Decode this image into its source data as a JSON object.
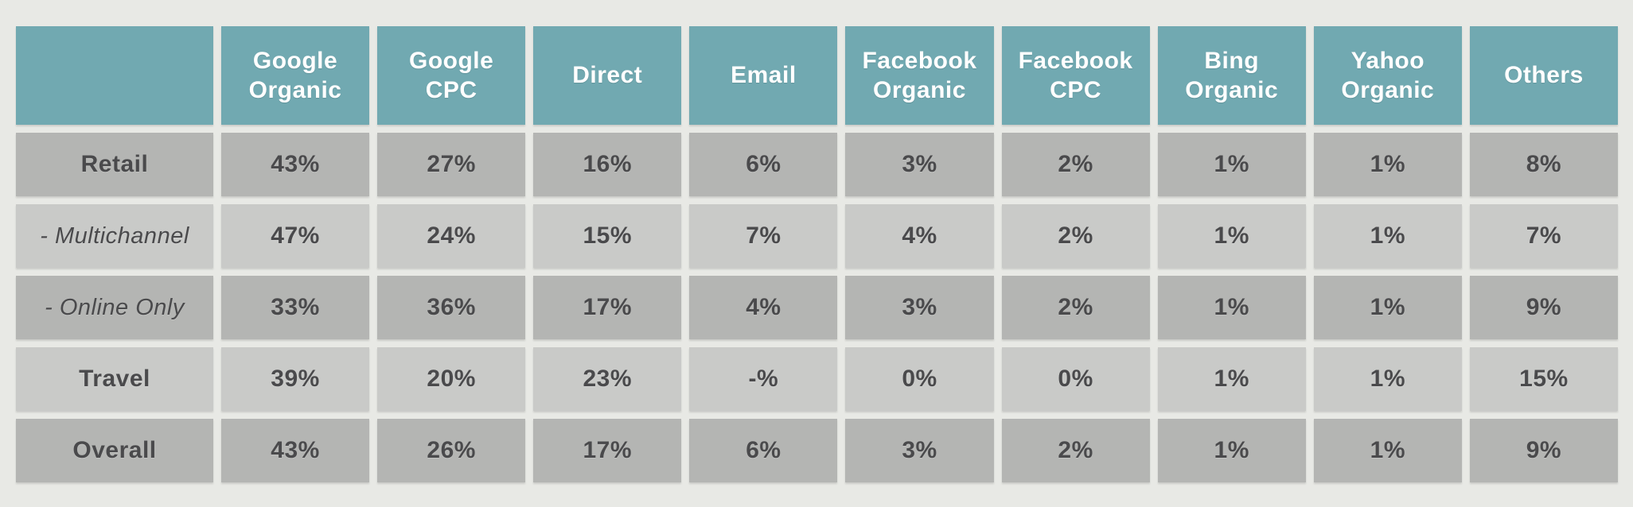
{
  "colors": {
    "page_bg": "#e8e9e5",
    "header_bg": "#71a9b1",
    "header_text": "#ffffff",
    "row_dark": "#b4b5b3",
    "row_light": "#c9cac8",
    "cell_text": "#4a4a4c"
  },
  "chart_data": {
    "type": "table",
    "description": "Traffic source share by sector",
    "unit": "%",
    "columns": [
      "",
      "Google Organic",
      "Google CPC",
      "Direct",
      "Email",
      "Facebook Organic",
      "Facebook CPC",
      "Bing Organic",
      "Yahoo Organic",
      "Others"
    ],
    "rows": [
      {
        "label": "Retail",
        "values": [
          "43%",
          "27%",
          "16%",
          "6%",
          "3%",
          "2%",
          "1%",
          "1%",
          "8%"
        ]
      },
      {
        "label": "- Multichannel",
        "values": [
          "47%",
          "24%",
          "15%",
          "7%",
          "4%",
          "2%",
          "1%",
          "1%",
          "7%"
        ]
      },
      {
        "label": "- Online Only",
        "values": [
          "33%",
          "36%",
          "17%",
          "4%",
          "3%",
          "2%",
          "1%",
          "1%",
          "9%"
        ]
      },
      {
        "label": "Travel",
        "values": [
          "39%",
          "20%",
          "23%",
          "-%",
          "0%",
          "0%",
          "1%",
          "1%",
          "15%"
        ]
      },
      {
        "label": "Overall",
        "values": [
          "43%",
          "26%",
          "17%",
          "6%",
          "3%",
          "2%",
          "1%",
          "1%",
          "9%"
        ]
      }
    ]
  }
}
